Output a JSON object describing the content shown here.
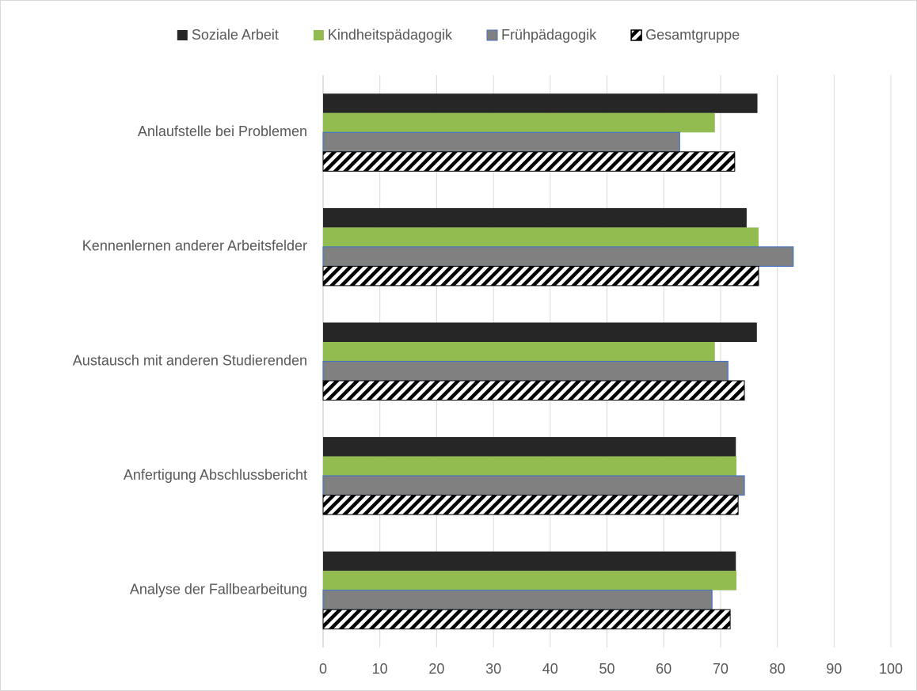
{
  "chart_data": {
    "type": "bar",
    "orientation": "horizontal",
    "categories": [
      "Anlaufstelle bei Problemen",
      "Kennenlernen anderer Arbeitsfelder",
      "Austausch mit anderen Studierenden",
      "Anfertigung Abschlussbericht",
      "Analyse der Fallbearbeitung"
    ],
    "series": [
      {
        "name": "Soziale Arbeit",
        "color": "#262626",
        "values": [
          76.5,
          74.6,
          76.4,
          72.7,
          72.7
        ]
      },
      {
        "name": "Kindheitspädagogik",
        "color": "#92bb50",
        "values": [
          69,
          76.7,
          69,
          72.8,
          72.8
        ]
      },
      {
        "name": "Frühpädagogik",
        "color": "#808080",
        "border": "#4472c4",
        "values": [
          62.8,
          82.8,
          71.3,
          74.2,
          68.5
        ]
      },
      {
        "name": "Gesamtgruppe",
        "color": "#000000",
        "pattern": "hatch",
        "values": [
          72.5,
          76.7,
          74.2,
          73.1,
          71.7
        ]
      }
    ],
    "xlim": [
      0,
      100
    ],
    "xticks": [
      0,
      10,
      20,
      30,
      40,
      50,
      60,
      70,
      80,
      90,
      100
    ],
    "grid": true,
    "legend": "top"
  }
}
